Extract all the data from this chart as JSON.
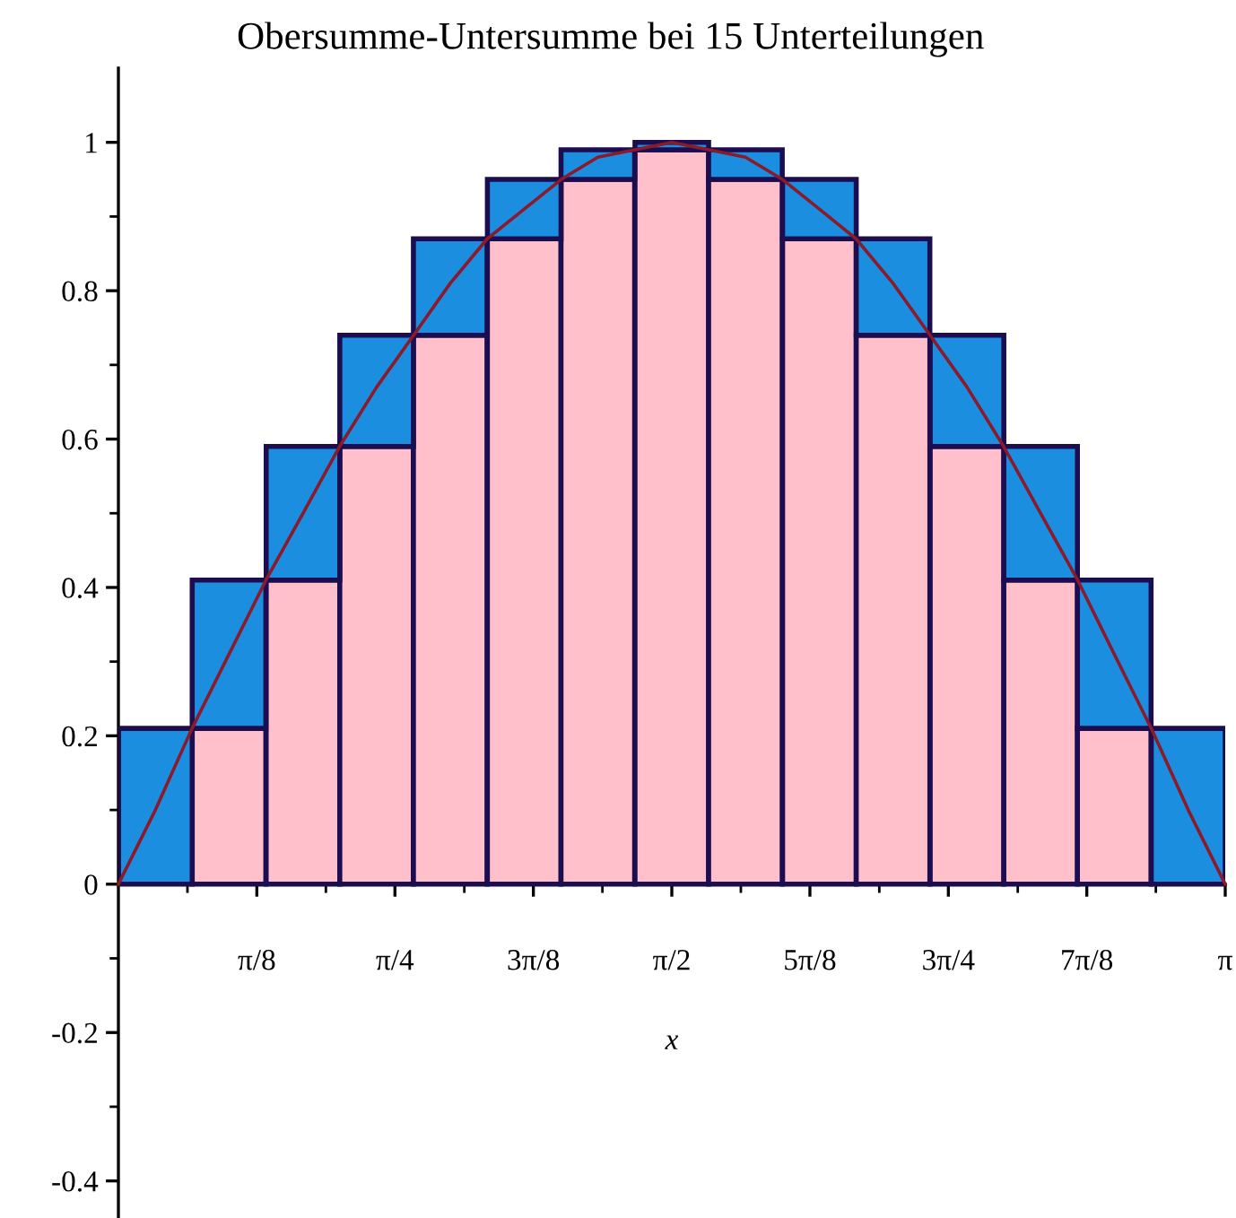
{
  "chart_data": {
    "type": "bar",
    "stacked": true,
    "title": "Obersumme-Untersumme bei 15 Unterteilungen",
    "xlabel": "x",
    "x": [
      0.105,
      0.314,
      0.524,
      0.733,
      0.942,
      1.152,
      1.361,
      1.571,
      1.78,
      1.99,
      2.199,
      2.409,
      2.618,
      2.827,
      3.037
    ],
    "series": [
      {
        "color": "#ffc0cb",
        "values": [
          null,
          0.21,
          0.41,
          0.59,
          0.74,
          0.87,
          0.95,
          0.99,
          0.95,
          0.87,
          0.74,
          0.59,
          0.41,
          0.21,
          null
        ]
      },
      {
        "color": "#1c8ee0",
        "values": [
          0.21,
          0.2,
          0.18,
          0.15,
          0.13,
          0.08,
          0.04,
          0.01,
          0.04,
          0.08,
          0.13,
          0.15,
          0.18,
          0.2,
          0.21
        ]
      },
      {
        "type": "line",
        "color": "#8b1a2b",
        "x": [
          0,
          0.105,
          0.209,
          0.314,
          0.419,
          0.524,
          0.628,
          0.733,
          0.838,
          0.942,
          1.047,
          1.152,
          1.257,
          1.361,
          1.466,
          1.571,
          1.676,
          1.78,
          1.885,
          1.99,
          2.094,
          2.199,
          2.304,
          2.409,
          2.513,
          2.618,
          2.723,
          2.827,
          2.932,
          3.037,
          3.142
        ],
        "values": [
          0,
          0.1,
          0.21,
          0.31,
          0.41,
          0.5,
          0.59,
          0.67,
          0.74,
          0.81,
          0.87,
          0.91,
          0.95,
          0.98,
          0.99,
          1.0,
          0.99,
          0.98,
          0.95,
          0.91,
          0.87,
          0.81,
          0.74,
          0.67,
          0.59,
          0.5,
          0.41,
          0.31,
          0.21,
          0.1,
          0
        ]
      }
    ],
    "xlim": [
      0,
      3.142
    ],
    "ylim": [
      -0.45,
      1.1
    ],
    "xticks": [
      {
        "value": 0.196,
        "label": null
      },
      {
        "value": 0.393,
        "label": "π/8"
      },
      {
        "value": 0.589,
        "label": null
      },
      {
        "value": 0.785,
        "label": "π/4"
      },
      {
        "value": 0.982,
        "label": null
      },
      {
        "value": 1.178,
        "label": "3π/8"
      },
      {
        "value": 1.374,
        "label": null
      },
      {
        "value": 1.571,
        "label": "π/2"
      },
      {
        "value": 1.767,
        "label": null
      },
      {
        "value": 1.963,
        "label": "5π/8"
      },
      {
        "value": 2.16,
        "label": null
      },
      {
        "value": 2.356,
        "label": "3π/4"
      },
      {
        "value": 2.553,
        "label": null
      },
      {
        "value": 2.749,
        "label": "7π/8"
      },
      {
        "value": 2.945,
        "label": null
      },
      {
        "value": 3.142,
        "label": "π"
      }
    ],
    "yticks": [
      -0.4,
      {
        "value": -0.3,
        "label": null
      },
      -0.2,
      {
        "value": -0.1,
        "label": null
      },
      0,
      {
        "value": 0.1,
        "label": null
      },
      0.2,
      {
        "value": 0.3,
        "label": null
      },
      0.4,
      {
        "value": 0.5,
        "label": null
      },
      0.6,
      {
        "value": 0.7,
        "label": null
      },
      0.8,
      {
        "value": 0.9,
        "label": null
      },
      1
    ]
  }
}
